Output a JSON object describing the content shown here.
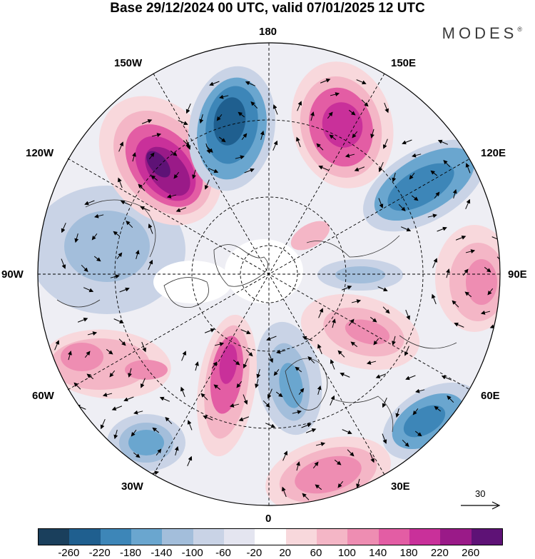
{
  "title": "Base 29/12/2024 00 UTC, valid 07/01/2025 12 UTC",
  "brand": {
    "name": "MODES",
    "mark": "®"
  },
  "lon_labels": {
    "top": "180",
    "bottom": "0",
    "left": "90W",
    "right": "90E",
    "upper_left": "150W",
    "upper_right": "150E",
    "mid_left": "120W",
    "mid_right": "120E",
    "low_left": "60W",
    "low_right": "60E",
    "bottom_left": "30W",
    "bottom_right": "30E"
  },
  "vector_scale": {
    "label": "30"
  },
  "colorbar": {
    "colors": [
      "#1a3f5c",
      "#1f5f8f",
      "#3d86b8",
      "#6aa6cf",
      "#a3bedb",
      "#c9d3e6",
      "#e4e5f0",
      "#ffffff",
      "#f8d8dc",
      "#f4b6c6",
      "#ee8db2",
      "#e35da4",
      "#c9309a",
      "#9a1a88",
      "#5e1276"
    ],
    "ticks": [
      "-260",
      "-220",
      "-180",
      "-140",
      "-100",
      "-60",
      "-20",
      "20",
      "60",
      "100",
      "140",
      "180",
      "220",
      "260"
    ]
  },
  "anomaly_cells": [
    {
      "name": "positive-anomaly-alaska",
      "value": 260
    },
    {
      "name": "negative-anomaly-bering",
      "value": -220
    },
    {
      "name": "positive-anomaly-east-siberia",
      "value": 220
    },
    {
      "name": "negative-anomaly-central-siberia",
      "value": -180
    },
    {
      "name": "negative-anomaly-canada",
      "value": -100
    },
    {
      "name": "positive-anomaly-west-siberia",
      "value": 140
    },
    {
      "name": "positive-anomaly-east-pacific-rim",
      "value": 140
    },
    {
      "name": "positive-anomaly-north-atlantic",
      "value": 180
    },
    {
      "name": "negative-anomaly-scandinavia",
      "value": -100
    },
    {
      "name": "negative-anomaly-north-china",
      "value": -180
    },
    {
      "name": "positive-anomaly-mid-atlantic",
      "value": 140
    },
    {
      "name": "negative-anomaly-west-atlantic",
      "value": -140
    },
    {
      "name": "positive-anomaly-mediterranean",
      "value": 140
    },
    {
      "name": "positive-anomaly-us-east",
      "value": 100
    }
  ]
}
